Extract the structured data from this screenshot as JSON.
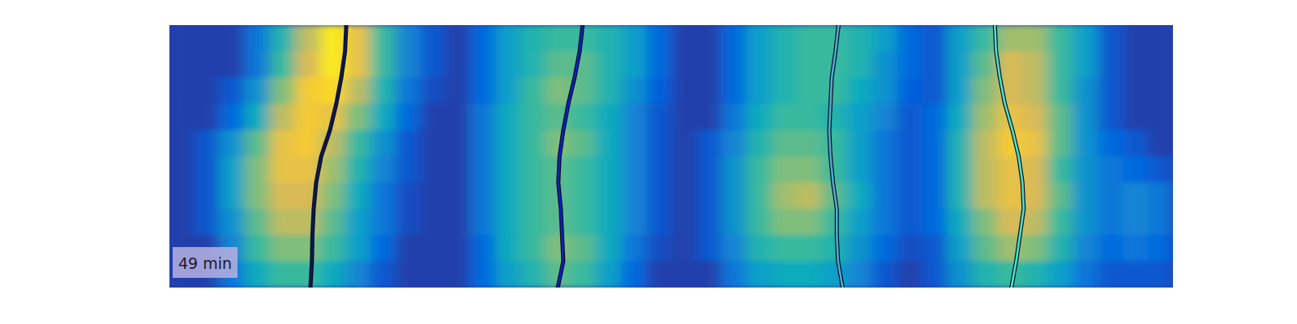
{
  "chart_data": {
    "type": "heatmap",
    "annotation": "49 min",
    "tick_labels": false,
    "xlim": [
      0,
      40
    ],
    "ylim": [
      0,
      100
    ],
    "clim": [
      0,
      1
    ],
    "cells": [
      [
        0.05,
        0.05,
        0.05,
        0.2,
        0.45,
        0.7,
        0.95,
        0.8,
        0.5,
        0.25,
        0.1,
        0.05,
        0.15,
        0.35,
        0.45,
        0.5,
        0.5,
        0.45,
        0.35,
        0.15,
        0.05,
        0.05,
        0.15,
        0.35,
        0.45,
        0.5,
        0.5,
        0.45,
        0.35,
        0.15,
        0.1,
        0.35,
        0.5,
        0.65,
        0.65,
        0.5,
        0.35,
        0.1,
        0.05,
        0.05
      ],
      [
        0.05,
        0.05,
        0.05,
        0.2,
        0.5,
        0.75,
        0.95,
        0.8,
        0.5,
        0.25,
        0.1,
        0.05,
        0.15,
        0.35,
        0.45,
        0.55,
        0.55,
        0.45,
        0.35,
        0.15,
        0.05,
        0.05,
        0.15,
        0.35,
        0.45,
        0.5,
        0.5,
        0.45,
        0.3,
        0.15,
        0.1,
        0.35,
        0.55,
        0.75,
        0.7,
        0.5,
        0.35,
        0.1,
        0.05,
        0.05
      ],
      [
        0.05,
        0.05,
        0.1,
        0.3,
        0.6,
        0.85,
        0.9,
        0.7,
        0.45,
        0.2,
        0.08,
        0.05,
        0.15,
        0.35,
        0.5,
        0.6,
        0.55,
        0.45,
        0.3,
        0.12,
        0.05,
        0.05,
        0.15,
        0.35,
        0.45,
        0.5,
        0.5,
        0.4,
        0.3,
        0.12,
        0.1,
        0.35,
        0.6,
        0.75,
        0.7,
        0.5,
        0.3,
        0.1,
        0.05,
        0.05
      ],
      [
        0.05,
        0.05,
        0.15,
        0.4,
        0.7,
        0.85,
        0.8,
        0.6,
        0.4,
        0.15,
        0.05,
        0.05,
        0.2,
        0.4,
        0.5,
        0.55,
        0.5,
        0.4,
        0.25,
        0.1,
        0.05,
        0.05,
        0.2,
        0.4,
        0.5,
        0.5,
        0.45,
        0.35,
        0.25,
        0.1,
        0.15,
        0.4,
        0.65,
        0.8,
        0.75,
        0.55,
        0.3,
        0.1,
        0.05,
        0.05
      ],
      [
        0.05,
        0.1,
        0.3,
        0.55,
        0.8,
        0.85,
        0.7,
        0.5,
        0.3,
        0.1,
        0.05,
        0.05,
        0.2,
        0.4,
        0.5,
        0.6,
        0.55,
        0.4,
        0.25,
        0.1,
        0.05,
        0.1,
        0.25,
        0.45,
        0.55,
        0.55,
        0.5,
        0.35,
        0.2,
        0.1,
        0.15,
        0.45,
        0.7,
        0.85,
        0.8,
        0.55,
        0.3,
        0.15,
        0.1,
        0.05
      ],
      [
        0.05,
        0.1,
        0.35,
        0.6,
        0.8,
        0.8,
        0.65,
        0.45,
        0.25,
        0.1,
        0.05,
        0.05,
        0.2,
        0.4,
        0.5,
        0.55,
        0.5,
        0.4,
        0.25,
        0.1,
        0.05,
        0.1,
        0.3,
        0.5,
        0.6,
        0.6,
        0.5,
        0.35,
        0.2,
        0.1,
        0.15,
        0.45,
        0.7,
        0.8,
        0.75,
        0.5,
        0.3,
        0.2,
        0.15,
        0.1
      ],
      [
        0.05,
        0.1,
        0.35,
        0.6,
        0.75,
        0.75,
        0.6,
        0.4,
        0.2,
        0.08,
        0.05,
        0.05,
        0.2,
        0.4,
        0.5,
        0.55,
        0.5,
        0.4,
        0.25,
        0.1,
        0.05,
        0.1,
        0.3,
        0.5,
        0.65,
        0.7,
        0.55,
        0.4,
        0.2,
        0.1,
        0.15,
        0.45,
        0.7,
        0.8,
        0.75,
        0.55,
        0.3,
        0.2,
        0.25,
        0.2
      ],
      [
        0.05,
        0.1,
        0.3,
        0.55,
        0.7,
        0.7,
        0.55,
        0.35,
        0.2,
        0.08,
        0.05,
        0.05,
        0.2,
        0.4,
        0.5,
        0.55,
        0.5,
        0.4,
        0.25,
        0.1,
        0.05,
        0.1,
        0.3,
        0.5,
        0.6,
        0.6,
        0.5,
        0.35,
        0.2,
        0.1,
        0.15,
        0.4,
        0.6,
        0.75,
        0.7,
        0.5,
        0.3,
        0.2,
        0.25,
        0.2
      ],
      [
        0.05,
        0.05,
        0.25,
        0.5,
        0.6,
        0.6,
        0.5,
        0.35,
        0.15,
        0.05,
        0.05,
        0.05,
        0.15,
        0.4,
        0.5,
        0.6,
        0.55,
        0.4,
        0.2,
        0.08,
        0.05,
        0.1,
        0.25,
        0.45,
        0.5,
        0.5,
        0.45,
        0.3,
        0.15,
        0.08,
        0.1,
        0.35,
        0.55,
        0.65,
        0.6,
        0.45,
        0.25,
        0.15,
        0.2,
        0.15
      ],
      [
        0.05,
        0.05,
        0.2,
        0.4,
        0.5,
        0.5,
        0.4,
        0.25,
        0.1,
        0.05,
        0.05,
        0.05,
        0.15,
        0.35,
        0.45,
        0.55,
        0.5,
        0.35,
        0.15,
        0.05,
        0.05,
        0.05,
        0.2,
        0.35,
        0.4,
        0.4,
        0.35,
        0.25,
        0.1,
        0.05,
        0.1,
        0.3,
        0.45,
        0.5,
        0.45,
        0.35,
        0.2,
        0.1,
        0.1,
        0.1
      ]
    ],
    "series": [
      {
        "type": "line",
        "color": "#0d1a52",
        "x": [
          7.05,
          7.0,
          6.85,
          6.65,
          6.4,
          6.05,
          5.85,
          5.75,
          5.7,
          5.68,
          5.62
        ],
        "values": [
          0,
          10,
          20,
          30,
          40,
          50,
          60,
          70,
          80,
          90,
          100
        ]
      },
      {
        "type": "line",
        "color": "#0b22c4",
        "x": [
          16.47,
          16.35,
          16.15,
          15.9,
          15.7,
          15.55,
          15.5,
          15.6,
          15.65,
          15.7,
          15.48
        ],
        "values": [
          0,
          10,
          20,
          30,
          40,
          50,
          60,
          70,
          80,
          90,
          100
        ]
      },
      {
        "type": "line",
        "color": "#4aaed0",
        "x": [
          26.67,
          26.55,
          26.4,
          26.35,
          26.3,
          26.35,
          26.45,
          26.6,
          26.6,
          26.65,
          26.83
        ],
        "values": [
          0,
          10,
          20,
          30,
          40,
          50,
          60,
          70,
          80,
          90,
          100
        ]
      },
      {
        "type": "line",
        "color": "#45e6cf",
        "x": [
          32.9,
          32.95,
          33.1,
          33.3,
          33.6,
          33.85,
          34.0,
          34.05,
          33.9,
          33.75,
          33.56
        ],
        "values": [
          0,
          10,
          20,
          30,
          40,
          50,
          60,
          70,
          80,
          90,
          100
        ]
      }
    ]
  }
}
